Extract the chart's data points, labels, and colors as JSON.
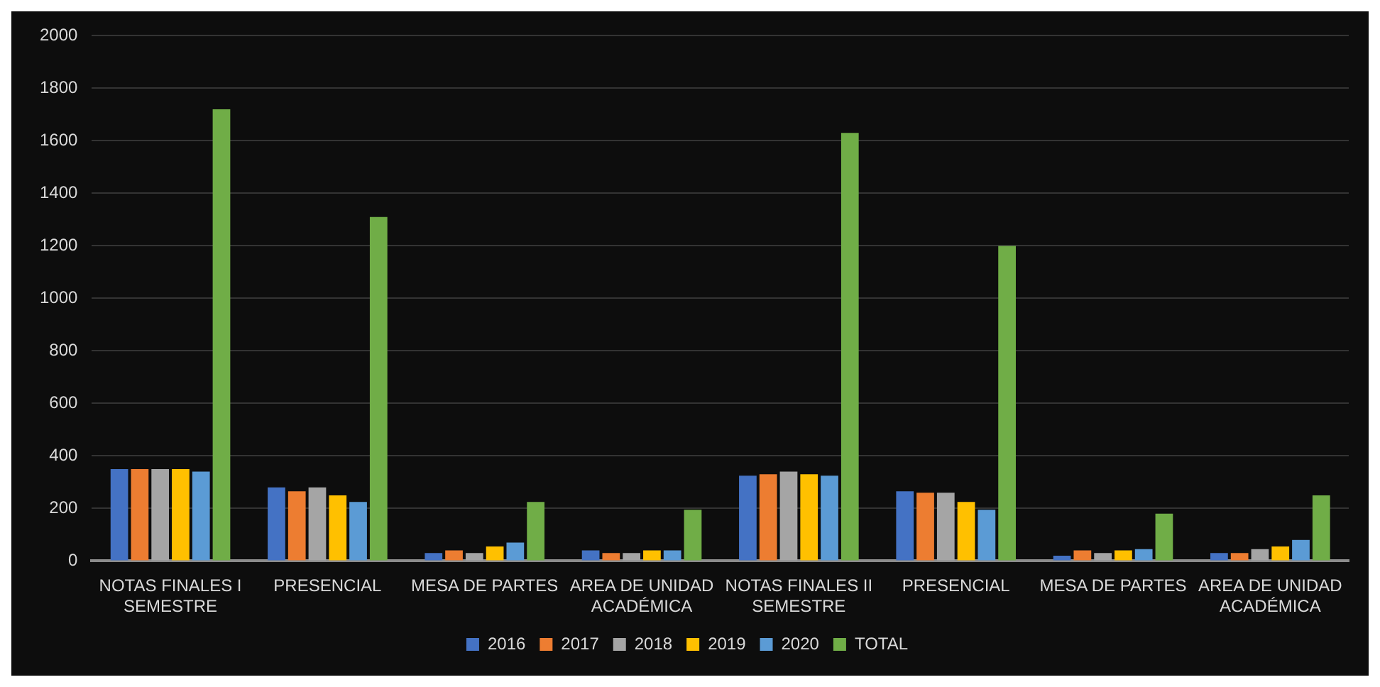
{
  "chart_data": {
    "type": "bar",
    "categories": [
      "NOTAS FINALES I SEMESTRE",
      "PRESENCIAL",
      "MESA DE PARTES",
      "AREA DE UNIDAD ACADÉMICA",
      "NOTAS FINALES II SEMESTRE",
      "PRESENCIAL",
      "MESA DE PARTES",
      "AREA DE UNIDAD ACADÉMICA"
    ],
    "series": [
      {
        "name": "2016",
        "color": "#4472c4",
        "values": [
          350,
          280,
          30,
          40,
          325,
          265,
          20,
          30
        ]
      },
      {
        "name": "2017",
        "color": "#ed7d31",
        "values": [
          350,
          265,
          40,
          30,
          330,
          260,
          40,
          30
        ]
      },
      {
        "name": "2018",
        "color": "#a5a5a5",
        "values": [
          350,
          280,
          30,
          30,
          340,
          260,
          30,
          45
        ]
      },
      {
        "name": "2019",
        "color": "#ffc000",
        "values": [
          350,
          250,
          55,
          40,
          330,
          225,
          40,
          55
        ]
      },
      {
        "name": "2020",
        "color": "#5b9bd5",
        "values": [
          340,
          225,
          70,
          40,
          325,
          195,
          45,
          80
        ]
      },
      {
        "name": "TOTAL",
        "color": "#70ad47",
        "values": [
          1720,
          1310,
          225,
          195,
          1630,
          1200,
          180,
          250
        ]
      }
    ],
    "ylim": [
      0,
      2000
    ],
    "yticks": [
      0,
      200,
      400,
      600,
      800,
      1000,
      1200,
      1400,
      1600,
      1800,
      2000
    ],
    "grid": "y",
    "legend": "bottom"
  }
}
